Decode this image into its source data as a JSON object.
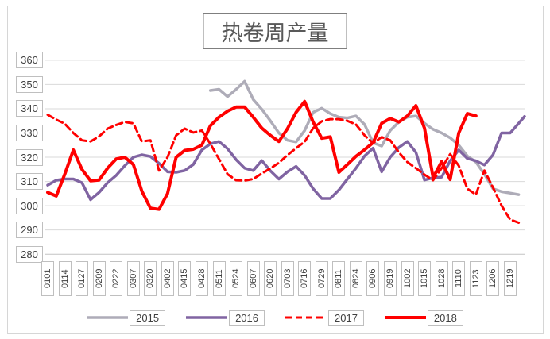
{
  "title": "热卷周产量",
  "chart_data": {
    "type": "line",
    "title": "热卷周产量",
    "ylim": [
      280,
      360
    ],
    "ytick_step": 10,
    "grid": "horizontal",
    "legend_position": "bottom",
    "x_labels_rotated": true,
    "points_per_category": 2,
    "categories": [
      "0101",
      "0114",
      "0127",
      "0209",
      "0222",
      "0307",
      "0320",
      "0402",
      "0415",
      "0428",
      "0511",
      "0524",
      "0607",
      "0620",
      "0703",
      "0716",
      "0729",
      "0811",
      "0824",
      "0906",
      "0919",
      "1002",
      "1015",
      "1028",
      "1110",
      "1123",
      "1206",
      "1219"
    ],
    "series": [
      {
        "name": "2015",
        "color": "#aeacb8",
        "style": "solid",
        "width": 3.5,
        "start_half_index": 19,
        "values": [
          347.5,
          348,
          345,
          348,
          351.3,
          343.8,
          339.8,
          335,
          330,
          327,
          326.3,
          331,
          338.5,
          340.2,
          338,
          336.5,
          336.2,
          337,
          333.5,
          326,
          324.6,
          331,
          334.5,
          336.5,
          337,
          334,
          331.5,
          330,
          328,
          325,
          320.5,
          318,
          313,
          307,
          305.8,
          305.2,
          304.6
        ]
      },
      {
        "name": "2016",
        "color": "#8064a2",
        "style": "solid",
        "width": 3.5,
        "start_half_index": 0,
        "values": [
          308.5,
          310.5,
          311,
          311,
          309.5,
          302.5,
          305.5,
          309.5,
          312.5,
          316.5,
          320,
          321,
          320.3,
          317.5,
          314,
          313.8,
          314.5,
          317,
          323,
          325.5,
          326.5,
          323.5,
          319,
          315.5,
          314.5,
          318.6,
          314.4,
          311,
          314,
          316.2,
          312.5,
          307,
          303,
          303,
          306.5,
          311,
          315.5,
          320.5,
          323.7,
          314,
          320,
          324,
          326.5,
          322,
          310.6,
          311.5,
          311.8,
          318.5,
          323,
          319.5,
          318.5,
          316.8,
          321,
          330,
          330,
          334,
          336.8
        ]
      },
      {
        "name": "2017",
        "color": "#ff0000",
        "style": "dashed",
        "width": 3,
        "start_half_index": 0,
        "values": [
          337.5,
          335.5,
          333.8,
          330,
          327,
          326.5,
          328.6,
          331.8,
          333.3,
          334.5,
          334,
          326.5,
          327,
          314.5,
          320,
          329,
          331.8,
          330.2,
          331,
          325.5,
          319.3,
          313,
          310.5,
          310.4,
          311,
          313.3,
          315.4,
          317.7,
          320.9,
          323.7,
          326.4,
          332,
          334.8,
          335.7,
          335.7,
          335,
          333.5,
          329,
          325.8,
          328.3,
          327,
          322,
          318,
          315.5,
          312.8,
          310.5,
          315.5,
          321.3,
          316.5,
          307,
          304.6,
          314.5,
          307.5,
          300,
          294.3,
          293
        ]
      },
      {
        "name": "2018",
        "color": "#ff0000",
        "style": "solid",
        "width": 4,
        "start_half_index": 0,
        "values": [
          305.5,
          304,
          313,
          323,
          315,
          310.3,
          310.6,
          315.5,
          319.3,
          320,
          317,
          306,
          299,
          298.5,
          305,
          320,
          322.8,
          323.3,
          325,
          333,
          336.5,
          339,
          340.7,
          340.7,
          336.5,
          332,
          329,
          326.5,
          331.8,
          338.5,
          343,
          334.5,
          327.8,
          328.4,
          313.8,
          317,
          320.4,
          323.1,
          326,
          334,
          336,
          334.5,
          337,
          341.3,
          332,
          311.6,
          318.2,
          310.8,
          330,
          338,
          337
        ]
      }
    ]
  }
}
